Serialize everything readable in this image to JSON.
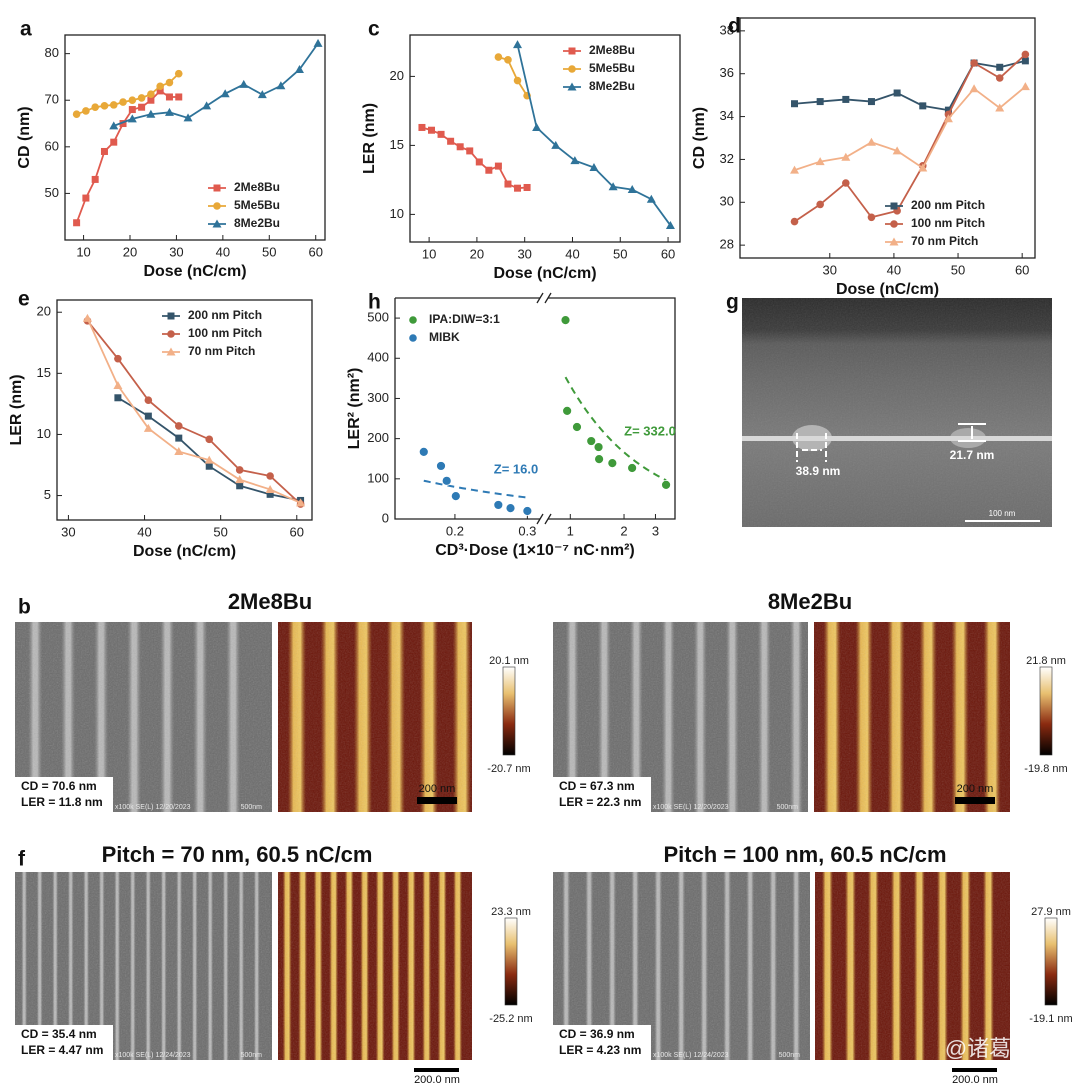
{
  "chart_data": [
    {
      "type": "line",
      "panel_label": "a",
      "x_label": "Dose (nC/cm)",
      "y_label": "CD (nm)",
      "xlim": [
        6,
        62
      ],
      "ylim": [
        40,
        84
      ],
      "xticks": [
        10,
        20,
        30,
        40,
        50,
        60
      ],
      "yticks": [
        50,
        60,
        70,
        80
      ],
      "legend": "lower right",
      "series": [
        {
          "name": "2Me8Bu",
          "color": "#e05a4e",
          "marker": "square",
          "x": [
            8.5,
            10.5,
            12.5,
            14.5,
            16.5,
            18.5,
            20.5,
            22.5,
            24.5,
            26.5,
            28.5,
            30.5
          ],
          "values": [
            43.7,
            49,
            53,
            59,
            61,
            65,
            68,
            68.5,
            70,
            72,
            70.7,
            70.7
          ]
        },
        {
          "name": "5Me5Bu",
          "color": "#e8a838",
          "marker": "circle",
          "x": [
            8.5,
            10.5,
            12.5,
            14.5,
            16.5,
            18.5,
            20.5,
            22.5,
            24.5,
            26.5,
            28.5,
            30.5
          ],
          "values": [
            67,
            67.7,
            68.5,
            68.8,
            69,
            69.6,
            70,
            70.5,
            71.3,
            73,
            73.8,
            75.7
          ]
        },
        {
          "name": "8Me2Bu",
          "color": "#2f7399",
          "marker": "triangle",
          "x": [
            16.5,
            20.5,
            24.5,
            28.5,
            32.5,
            36.5,
            40.5,
            44.5,
            48.5,
            52.5,
            56.5,
            60.5
          ],
          "values": [
            64.5,
            66,
            67,
            67.4,
            66.2,
            68.8,
            71.4,
            73.4,
            71.2,
            73.1,
            76.6,
            82.2
          ]
        }
      ]
    },
    {
      "type": "line",
      "panel_label": "c",
      "x_label": "Dose (nC/cm)",
      "y_label": "LER (nm)",
      "xlim": [
        6,
        62.5
      ],
      "ylim": [
        8,
        23
      ],
      "xticks": [
        10,
        20,
        30,
        40,
        50,
        60
      ],
      "yticks": [
        10,
        15,
        20
      ],
      "legend": "upper right",
      "series": [
        {
          "name": "2Me8Bu",
          "color": "#e05a4e",
          "marker": "square",
          "x": [
            8.5,
            10.5,
            12.5,
            14.5,
            16.5,
            18.5,
            20.5,
            22.5,
            24.5,
            26.5,
            28.5,
            30.5
          ],
          "values": [
            16.3,
            16.1,
            15.8,
            15.3,
            14.9,
            14.6,
            13.8,
            13.2,
            13.5,
            12.2,
            11.9,
            11.95
          ]
        },
        {
          "name": "5Me5Bu",
          "color": "#e8a838",
          "marker": "circle",
          "x": [
            24.5,
            26.5,
            28.5,
            30.5
          ],
          "values": [
            21.4,
            21.2,
            19.7,
            18.6
          ]
        },
        {
          "name": "8Me2Bu",
          "color": "#2f7399",
          "marker": "triangle",
          "x": [
            28.5,
            32.5,
            36.5,
            40.5,
            44.5,
            48.5,
            52.5,
            56.5,
            60.5
          ],
          "values": [
            22.3,
            16.3,
            15,
            13.9,
            13.4,
            12,
            11.8,
            11.1,
            9.2
          ]
        }
      ]
    },
    {
      "type": "line",
      "panel_label": "d",
      "x_label": "Dose (nC/cm)",
      "y_label": "CD (nm)",
      "xlim": [
        16,
        62
      ],
      "ylim": [
        27.4,
        38.6
      ],
      "xticks": [
        30,
        40,
        50,
        60
      ],
      "yticks": [
        28,
        30,
        32,
        34,
        36,
        38
      ],
      "legend": "lower right",
      "series": [
        {
          "name": "200 nm Pitch",
          "color": "#34546a",
          "marker": "square",
          "x": [
            24.5,
            28.5,
            32.5,
            36.5,
            40.5,
            44.5,
            48.5,
            52.5,
            56.5,
            60.5
          ],
          "values": [
            34.6,
            34.7,
            34.8,
            34.7,
            35.1,
            34.5,
            34.3,
            36.5,
            36.3,
            36.6
          ]
        },
        {
          "name": "100 nm Pitch",
          "color": "#c4604a",
          "marker": "circle",
          "x": [
            24.5,
            28.5,
            32.5,
            36.5,
            40.5,
            44.5,
            48.5,
            52.5,
            56.5,
            60.5
          ],
          "values": [
            29.1,
            29.9,
            30.9,
            29.3,
            29.6,
            31.7,
            34.1,
            36.5,
            35.8,
            36.9
          ]
        },
        {
          "name": "70 nm Pitch",
          "color": "#f2b088",
          "marker": "triangle",
          "x": [
            24.5,
            28.5,
            32.5,
            36.5,
            40.5,
            44.5,
            48.5,
            52.5,
            56.5,
            60.5
          ],
          "values": [
            31.5,
            31.9,
            32.1,
            32.8,
            32.4,
            31.6,
            33.9,
            35.3,
            34.4,
            35.4
          ]
        }
      ]
    },
    {
      "type": "line",
      "panel_label": "e",
      "x_label": "Dose (nC/cm)",
      "y_label": "LER (nm)",
      "xlim": [
        28.5,
        62
      ],
      "ylim": [
        3,
        21
      ],
      "xticks": [
        30,
        40,
        50,
        60
      ],
      "yticks": [
        5,
        10,
        15,
        20
      ],
      "legend": "upper right",
      "series": [
        {
          "name": "200 nm Pitch",
          "color": "#34546a",
          "marker": "square",
          "x": [
            36.5,
            40.5,
            44.5,
            48.5,
            52.5,
            56.5,
            60.5
          ],
          "values": [
            13,
            11.5,
            9.7,
            7.4,
            5.8,
            5.1,
            4.6
          ]
        },
        {
          "name": "100 nm Pitch",
          "color": "#c4604a",
          "marker": "circle",
          "x": [
            32.5,
            36.5,
            40.5,
            44.5,
            48.5,
            52.5,
            56.5,
            60.5
          ],
          "values": [
            19.3,
            16.2,
            12.8,
            10.7,
            9.6,
            7.1,
            6.6,
            4.3
          ]
        },
        {
          "name": "70 nm Pitch",
          "color": "#f2b088",
          "marker": "triangle",
          "x": [
            32.5,
            36.5,
            40.5,
            44.5,
            48.5,
            52.5,
            56.5,
            60.5
          ],
          "values": [
            19.5,
            14,
            10.5,
            8.6,
            7.9,
            6.3,
            5.5,
            4.4
          ]
        }
      ]
    },
    {
      "type": "scatter",
      "panel_label": "h",
      "x_label": "CD³·Dose (1×10⁻⁷ nC·nm²)",
      "y_label": "LER² (nm²)",
      "log_x": true,
      "xlim": [
        0.143,
        3.86
      ],
      "x_break": [
        0.322,
        0.75
      ],
      "ylim": [
        0,
        550
      ],
      "xticks": [
        0.2,
        0.3,
        1,
        2,
        3
      ],
      "yticks": [
        0,
        100,
        200,
        300,
        400,
        500
      ],
      "legend": "upper left",
      "series": [
        {
          "name": "IPA:DIW=3:1",
          "color": "#3f9a3a",
          "marker": "circle",
          "x": [
            0.94,
            0.96,
            1.09,
            1.31,
            1.44,
            1.45,
            1.72,
            2.22,
            3.44
          ],
          "values": [
            495,
            269,
            229,
            194,
            179,
            149,
            139,
            127,
            85
          ],
          "fit_z": 332.0,
          "fit_label": "Z= 332.0"
        },
        {
          "name": "MIBK",
          "color": "#2e7ab5",
          "marker": "circle",
          "x": [
            0.168,
            0.185,
            0.191,
            0.201,
            0.255,
            0.273,
            0.3
          ],
          "values": [
            167,
            132,
            95,
            57,
            35,
            27,
            20
          ],
          "fit_z": 16.0,
          "fit_label": "Z= 16.0"
        }
      ]
    }
  ],
  "panel_g": {
    "label": "g",
    "annotations": [
      "38.9 nm",
      "21.7 nm"
    ],
    "scale_bar": "100 nm"
  },
  "panel_b": {
    "label": "b",
    "images": [
      {
        "title": "2Me8Bu",
        "cd": "CD = 70.6 nm",
        "ler": "LER = 11.8 nm",
        "sem_info": "x100k SE(L) 12/20/2023",
        "sem_scale": "500nm",
        "afm_scale": "200 nm",
        "colorbar_max": "20.1 nm",
        "colorbar_min": "-20.7 nm"
      },
      {
        "title": "8Me2Bu",
        "cd": "CD = 67.3 nm",
        "ler": "LER = 22.3 nm",
        "sem_info": "x100k SE(L) 12/20/2023",
        "sem_scale": "500nm",
        "afm_scale": "200 nm",
        "colorbar_max": "21.8 nm",
        "colorbar_min": "-19.8 nm"
      }
    ]
  },
  "panel_f": {
    "label": "f",
    "images": [
      {
        "title": "Pitch = 70 nm, 60.5 nC/cm",
        "cd": "CD = 35.4 nm",
        "ler": "LER = 4.47 nm",
        "sem_info": "x100k SE(L) 12/24/2023",
        "sem_scale": "500nm",
        "afm_scale": "200.0 nm",
        "colorbar_max": "23.3 nm",
        "colorbar_min": "-25.2 nm"
      },
      {
        "title": "Pitch = 100 nm, 60.5 nC/cm",
        "cd": "CD = 36.9 nm",
        "ler": "LER = 4.23 nm",
        "sem_info": "x100k SE(L) 12/24/2023",
        "sem_scale": "500nm",
        "afm_scale": "200.0 nm",
        "colorbar_max": "27.9 nm",
        "colorbar_min": "-19.1 nm"
      }
    ]
  },
  "watermark": "@诸葛务农"
}
